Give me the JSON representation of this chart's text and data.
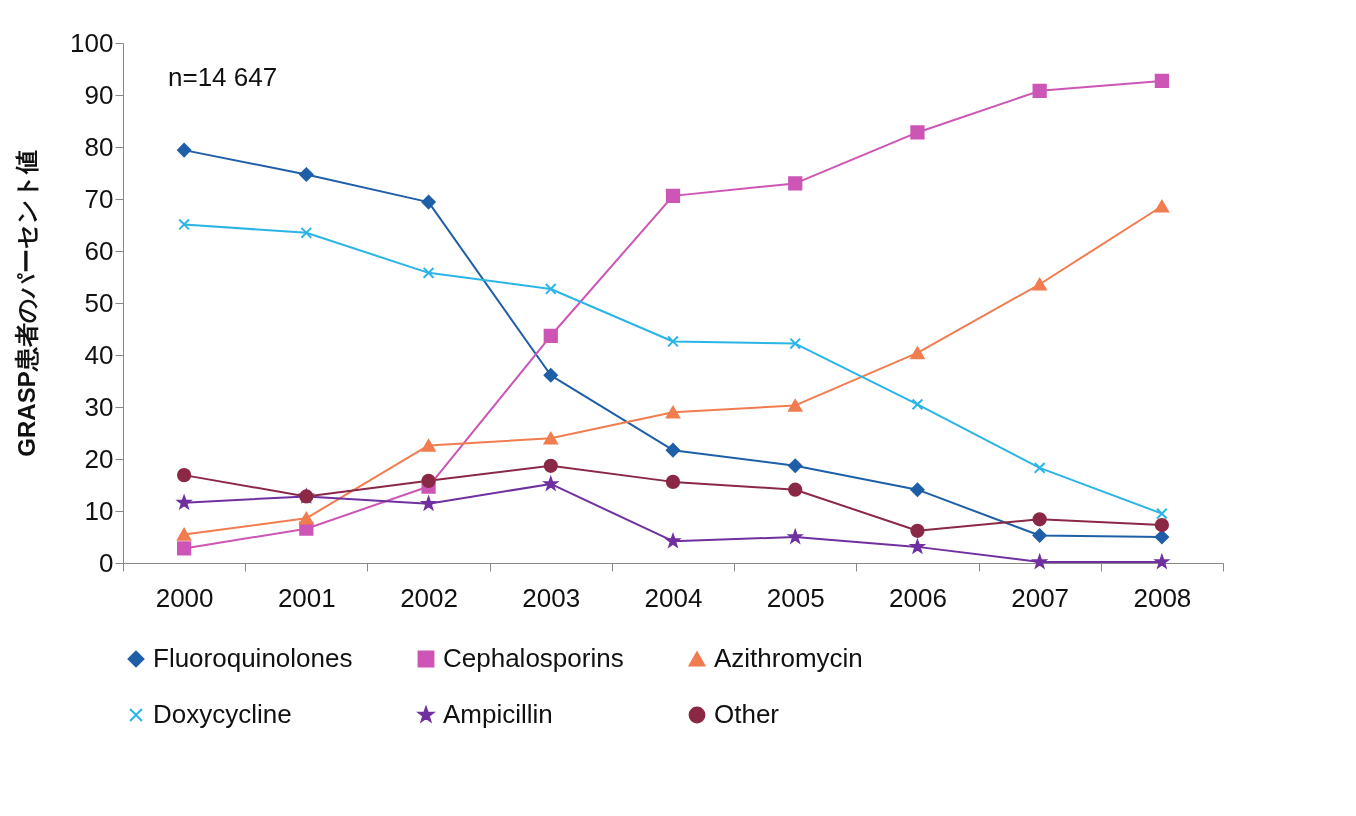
{
  "chart_data": {
    "type": "line",
    "ylabel": "GRASP患者のパーセント値",
    "annotations": [
      "n=14 647"
    ],
    "categories": [
      "2000",
      "2001",
      "2002",
      "2003",
      "2004",
      "2005",
      "2006",
      "2007",
      "2008"
    ],
    "ylim": [
      0,
      100
    ],
    "yticks": [
      0,
      10,
      20,
      30,
      40,
      50,
      60,
      70,
      80,
      90,
      100
    ],
    "grid": false,
    "legend": "bottom",
    "line_style": "solid",
    "series": [
      {
        "name": "Fluoroquinolones",
        "color": "#1f5fa8",
        "marker": "diamond",
        "values": [
          79.4,
          74.7,
          69.4,
          36.1,
          21.7,
          18.7,
          14.1,
          5.3,
          5.0
        ]
      },
      {
        "name": "Cephalosporins",
        "color": "#cc55b5",
        "marker": "square",
        "values": [
          2.8,
          6.6,
          14.7,
          43.7,
          70.6,
          73.0,
          82.8,
          90.8,
          92.7
        ]
      },
      {
        "name": "Azithromycin",
        "color": "#f07c4f",
        "marker": "triangle",
        "values": [
          5.5,
          8.6,
          22.6,
          24.0,
          29.0,
          30.3,
          40.4,
          53.6,
          68.6
        ]
      },
      {
        "name": "Doxycycline",
        "color": "#2bb5e6",
        "marker": "cross",
        "values": [
          65.1,
          63.5,
          55.8,
          52.7,
          42.6,
          42.2,
          30.5,
          18.3,
          9.5
        ]
      },
      {
        "name": "Ampicillin",
        "color": "#7030a0",
        "marker": "star",
        "values": [
          11.6,
          12.8,
          11.4,
          15.2,
          4.2,
          5.0,
          3.1,
          0.2,
          0.2
        ]
      },
      {
        "name": "Other",
        "color": "#8b2846",
        "marker": "circle",
        "values": [
          16.9,
          12.8,
          15.8,
          18.7,
          15.6,
          14.1,
          6.2,
          8.4,
          7.3
        ]
      }
    ]
  }
}
